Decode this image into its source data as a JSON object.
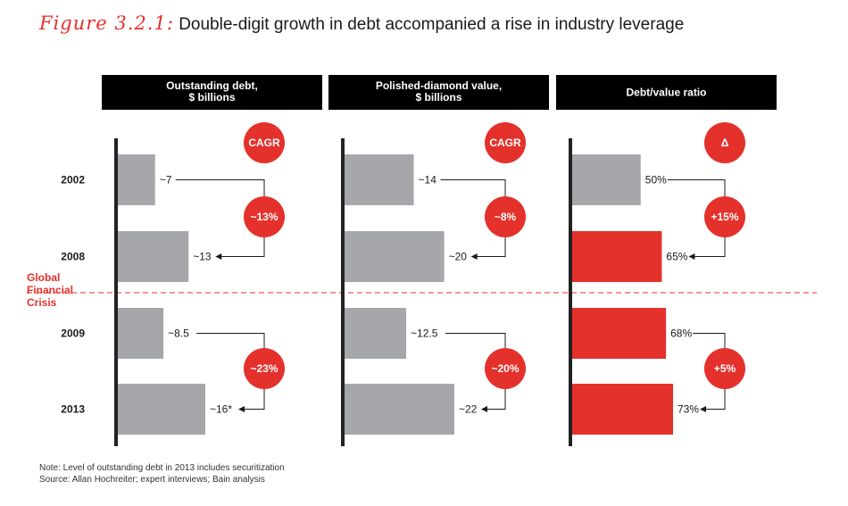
{
  "figure": {
    "label": "Figure 3.2.1:",
    "title": "Double-digit growth in debt accompanied a rise in industry leverage"
  },
  "footnotes": {
    "note": "Note: Level of outstanding debt in 2013 includes securitization",
    "source": "Source:  Allan Hochreiter; expert interviews; Bain analysis"
  },
  "colors": {
    "accent": "#e4312b",
    "bar_gray": "#a6a7aa",
    "header_bg": "#000000",
    "divider": "#e4312b",
    "axis": "#222222"
  },
  "chart_data": {
    "type": "bar",
    "orientation": "horizontal",
    "categories": [
      "2002",
      "2008",
      "2009",
      "2013"
    ],
    "event_marker": {
      "label": [
        "Global",
        "Financial",
        "Crisis"
      ],
      "between": [
        "2008",
        "2009"
      ]
    },
    "panels": [
      {
        "header": [
          "Outstanding debt,",
          "$ billions"
        ],
        "values": [
          7,
          13,
          8.5,
          16
        ],
        "labels": [
          "~7",
          "~13",
          "~8.5",
          "~16*"
        ],
        "highlight": [
          false,
          false,
          false,
          false
        ],
        "max": 22,
        "badge_header": "CAGR",
        "growth": [
          "~13%",
          "~23%"
        ]
      },
      {
        "header": [
          "Polished-diamond value,",
          "$ billions"
        ],
        "values": [
          14,
          20,
          12.5,
          22
        ],
        "labels": [
          "~14",
          "~20",
          "~12.5",
          "~22"
        ],
        "highlight": [
          false,
          false,
          false,
          false
        ],
        "max": 22,
        "badge_header": "CAGR",
        "growth": [
          "~8%",
          "~20%"
        ]
      },
      {
        "header": [
          "Debt/value ratio"
        ],
        "values": [
          50,
          65,
          68,
          73
        ],
        "labels": [
          "50%",
          "65%",
          "68%",
          "73%"
        ],
        "highlight": [
          false,
          true,
          true,
          true
        ],
        "max": 73,
        "badge_header": "Δ",
        "growth": [
          "+15%",
          "+5%"
        ]
      }
    ]
  }
}
